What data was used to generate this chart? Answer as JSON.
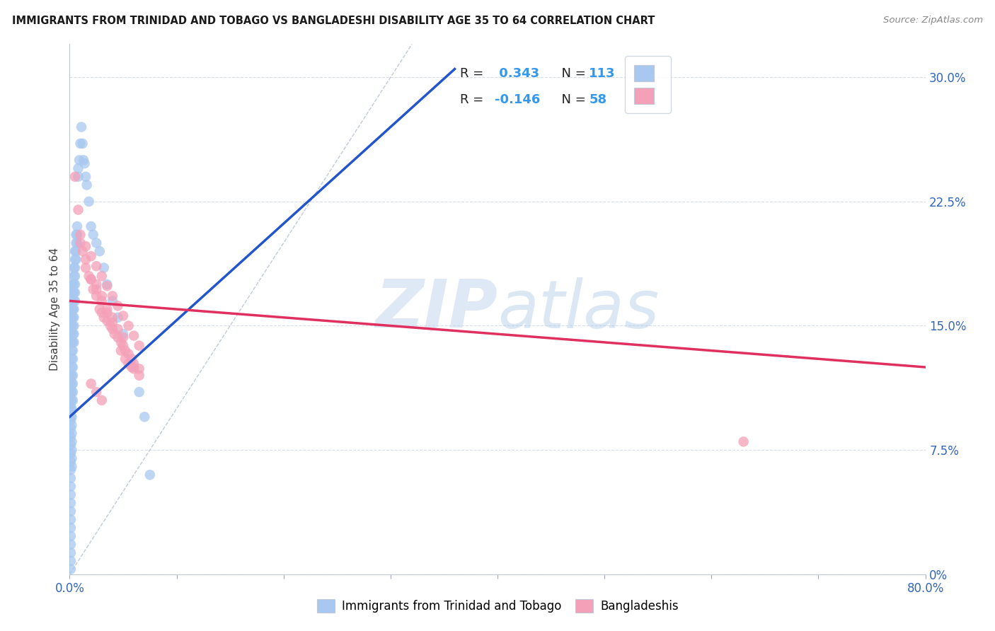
{
  "title": "IMMIGRANTS FROM TRINIDAD AND TOBAGO VS BANGLADESHI DISABILITY AGE 35 TO 64 CORRELATION CHART",
  "source": "Source: ZipAtlas.com",
  "ylabel": "Disability Age 35 to 64",
  "xlim": [
    0.0,
    0.8
  ],
  "ylim": [
    0.0,
    0.32
  ],
  "xtick_positions": [
    0.0,
    0.1,
    0.2,
    0.3,
    0.4,
    0.5,
    0.6,
    0.7,
    0.8
  ],
  "xtick_labels": [
    "0.0%",
    "",
    "",
    "",
    "",
    "",
    "",
    "",
    "80.0%"
  ],
  "ytick_positions": [
    0.0,
    0.075,
    0.15,
    0.225,
    0.3
  ],
  "ytick_labels_right": [
    "0%",
    "7.5%",
    "15.0%",
    "22.5%",
    "30.0%"
  ],
  "R_blue": 0.343,
  "N_blue": 113,
  "R_pink": -0.146,
  "N_pink": 58,
  "blue_color": "#a8c8f0",
  "pink_color": "#f4a0b8",
  "blue_line_color": "#2255cc",
  "pink_line_color": "#e03060",
  "legend_label_blue": "Immigrants from Trinidad and Tobago",
  "legend_label_pink": "Bangladeshis",
  "watermark_zip": "ZIP",
  "watermark_atlas": "atlas",
  "background_color": "#ffffff",
  "grid_color": "#d8dde8",
  "blue_line": {
    "x0": 0.0,
    "y0": 0.095,
    "x1": 0.36,
    "y1": 0.305
  },
  "pink_line": {
    "x0": 0.0,
    "y0": 0.165,
    "x1": 0.8,
    "y1": 0.125
  },
  "ref_line": {
    "x0": 0.0,
    "y0": 0.0,
    "x1": 0.32,
    "y1": 0.32
  },
  "blue_x": [
    0.001,
    0.001,
    0.001,
    0.001,
    0.001,
    0.001,
    0.001,
    0.001,
    0.001,
    0.001,
    0.001,
    0.001,
    0.001,
    0.001,
    0.001,
    0.001,
    0.001,
    0.001,
    0.001,
    0.001,
    0.001,
    0.001,
    0.001,
    0.001,
    0.001,
    0.001,
    0.001,
    0.001,
    0.001,
    0.001,
    0.002,
    0.002,
    0.002,
    0.002,
    0.002,
    0.002,
    0.002,
    0.002,
    0.002,
    0.002,
    0.002,
    0.002,
    0.002,
    0.002,
    0.002,
    0.002,
    0.002,
    0.002,
    0.002,
    0.002,
    0.003,
    0.003,
    0.003,
    0.003,
    0.003,
    0.003,
    0.003,
    0.003,
    0.003,
    0.003,
    0.003,
    0.003,
    0.003,
    0.003,
    0.003,
    0.004,
    0.004,
    0.004,
    0.004,
    0.004,
    0.004,
    0.004,
    0.004,
    0.004,
    0.004,
    0.005,
    0.005,
    0.005,
    0.005,
    0.005,
    0.005,
    0.005,
    0.006,
    0.006,
    0.006,
    0.006,
    0.007,
    0.007,
    0.007,
    0.008,
    0.008,
    0.009,
    0.01,
    0.011,
    0.012,
    0.013,
    0.014,
    0.015,
    0.016,
    0.018,
    0.02,
    0.022,
    0.025,
    0.028,
    0.032,
    0.035,
    0.04,
    0.045,
    0.05,
    0.06,
    0.065,
    0.07,
    0.075
  ],
  "blue_y": [
    0.118,
    0.113,
    0.108,
    0.103,
    0.098,
    0.093,
    0.088,
    0.083,
    0.078,
    0.073,
    0.068,
    0.063,
    0.058,
    0.053,
    0.048,
    0.043,
    0.038,
    0.033,
    0.028,
    0.023,
    0.018,
    0.013,
    0.008,
    0.003,
    0.12,
    0.115,
    0.11,
    0.105,
    0.1,
    0.095,
    0.16,
    0.155,
    0.15,
    0.145,
    0.14,
    0.135,
    0.13,
    0.125,
    0.12,
    0.115,
    0.11,
    0.105,
    0.1,
    0.095,
    0.09,
    0.085,
    0.08,
    0.075,
    0.07,
    0.065,
    0.175,
    0.17,
    0.165,
    0.16,
    0.155,
    0.15,
    0.145,
    0.14,
    0.135,
    0.13,
    0.125,
    0.12,
    0.115,
    0.11,
    0.105,
    0.185,
    0.18,
    0.175,
    0.17,
    0.165,
    0.16,
    0.155,
    0.15,
    0.145,
    0.14,
    0.195,
    0.19,
    0.185,
    0.18,
    0.175,
    0.17,
    0.165,
    0.205,
    0.2,
    0.195,
    0.19,
    0.21,
    0.205,
    0.2,
    0.245,
    0.24,
    0.25,
    0.26,
    0.27,
    0.26,
    0.25,
    0.248,
    0.24,
    0.235,
    0.225,
    0.21,
    0.205,
    0.2,
    0.195,
    0.185,
    0.175,
    0.165,
    0.155,
    0.145,
    0.125,
    0.11,
    0.095,
    0.06
  ],
  "pink_x": [
    0.005,
    0.008,
    0.01,
    0.012,
    0.015,
    0.018,
    0.02,
    0.022,
    0.025,
    0.028,
    0.03,
    0.032,
    0.035,
    0.038,
    0.04,
    0.042,
    0.045,
    0.048,
    0.05,
    0.052,
    0.055,
    0.058,
    0.06,
    0.065,
    0.025,
    0.03,
    0.035,
    0.04,
    0.045,
    0.05,
    0.015,
    0.02,
    0.025,
    0.03,
    0.035,
    0.04,
    0.01,
    0.015,
    0.02,
    0.025,
    0.03,
    0.035,
    0.04,
    0.045,
    0.05,
    0.055,
    0.06,
    0.065,
    0.055,
    0.06,
    0.065,
    0.048,
    0.052,
    0.058,
    0.63,
    0.02,
    0.025,
    0.03
  ],
  "pink_y": [
    0.24,
    0.22,
    0.2,
    0.195,
    0.19,
    0.18,
    0.178,
    0.172,
    0.168,
    0.16,
    0.158,
    0.155,
    0.153,
    0.15,
    0.148,
    0.145,
    0.143,
    0.14,
    0.138,
    0.135,
    0.133,
    0.13,
    0.127,
    0.124,
    0.175,
    0.168,
    0.16,
    0.155,
    0.148,
    0.143,
    0.185,
    0.178,
    0.172,
    0.165,
    0.158,
    0.152,
    0.205,
    0.198,
    0.192,
    0.186,
    0.18,
    0.174,
    0.168,
    0.162,
    0.156,
    0.15,
    0.144,
    0.138,
    0.127,
    0.124,
    0.12,
    0.135,
    0.13,
    0.125,
    0.08,
    0.115,
    0.11,
    0.105
  ]
}
